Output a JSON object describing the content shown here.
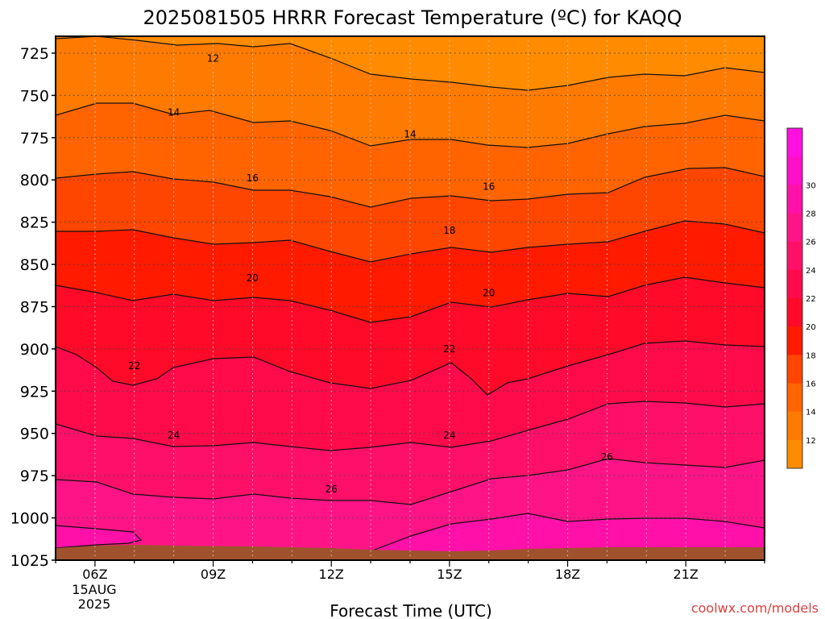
{
  "chart_data": {
    "type": "filled-contour",
    "title": "2025081505 HRRR Forecast Temperature (ºC) for KAQQ",
    "xlabel": "Forecast Time (UTC)",
    "ylabel": "",
    "x_ticks": [
      "06Z",
      "09Z",
      "12Z",
      "15Z",
      "18Z",
      "21Z"
    ],
    "x_hours": [
      6,
      9,
      12,
      15,
      18,
      21
    ],
    "x_range_hours": [
      5,
      23
    ],
    "date_label": [
      "15AUG",
      "2025"
    ],
    "y_ticks": [
      725,
      750,
      775,
      800,
      825,
      850,
      875,
      900,
      925,
      950,
      975,
      1000,
      1025
    ],
    "y_range": [
      1025,
      715
    ],
    "y_reversed": true,
    "grid": true,
    "contour_levels": [
      12,
      14,
      16,
      18,
      20,
      22,
      24,
      26
    ],
    "contour_labels": [
      {
        "level": 12,
        "x_hour": 9,
        "y": 728
      },
      {
        "level": 14,
        "x_hour": 8,
        "y": 760
      },
      {
        "level": 14,
        "x_hour": 14,
        "y": 773
      },
      {
        "level": 16,
        "x_hour": 10,
        "y": 799
      },
      {
        "level": 16,
        "x_hour": 16,
        "y": 804
      },
      {
        "level": 18,
        "x_hour": 15,
        "y": 830
      },
      {
        "level": 20,
        "x_hour": 10,
        "y": 858
      },
      {
        "level": 20,
        "x_hour": 16,
        "y": 867
      },
      {
        "level": 22,
        "x_hour": 7,
        "y": 910
      },
      {
        "level": 22,
        "x_hour": 15,
        "y": 900
      },
      {
        "level": 24,
        "x_hour": 8,
        "y": 951
      },
      {
        "level": 24,
        "x_hour": 15,
        "y": 951
      },
      {
        "level": 26,
        "x_hour": 12,
        "y": 983
      },
      {
        "level": 26,
        "x_hour": 19,
        "y": 964
      }
    ],
    "colorbar": {
      "ticks": [
        12,
        14,
        16,
        18,
        20,
        22,
        24,
        26,
        28,
        30
      ],
      "colors": [
        "#ff8c00",
        "#ff7a00",
        "#ff6400",
        "#ff4600",
        "#ff1a00",
        "#ff0a28",
        "#ff0a4b",
        "#ff1068",
        "#ff1488",
        "#ff10a8",
        "#ff10c8",
        "#ff10e0"
      ]
    },
    "ground_color": "#a0522d",
    "credit": "coolwx.com/models"
  }
}
